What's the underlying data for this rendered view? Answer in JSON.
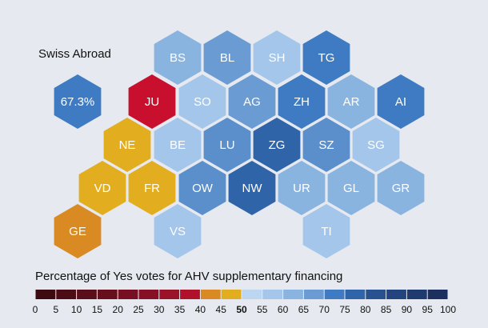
{
  "title": "Swiss Abroad",
  "abroad": {
    "label": "67.3%",
    "color": "#3f7bc2"
  },
  "cantons": [
    {
      "label": "BS",
      "color": "#8ab4e0"
    },
    {
      "label": "BL",
      "color": "#6a9bd3"
    },
    {
      "label": "SH",
      "color": "#a4c6ea"
    },
    {
      "label": "TG",
      "color": "#3f7bc2"
    },
    {
      "label": "JU",
      "color": "#c8102e"
    },
    {
      "label": "SO",
      "color": "#a4c6ea"
    },
    {
      "label": "AG",
      "color": "#6a9bd3"
    },
    {
      "label": "ZH",
      "color": "#3f7bc2"
    },
    {
      "label": "AR",
      "color": "#8ab4e0"
    },
    {
      "label": "AI",
      "color": "#3f7bc2"
    },
    {
      "label": "NE",
      "color": "#e2ae20"
    },
    {
      "label": "BE",
      "color": "#a4c6ea"
    },
    {
      "label": "LU",
      "color": "#5a8fcc"
    },
    {
      "label": "ZG",
      "color": "#2f64a8"
    },
    {
      "label": "SZ",
      "color": "#5a8fcc"
    },
    {
      "label": "SG",
      "color": "#a4c6ea"
    },
    {
      "label": "VD",
      "color": "#e2ae20"
    },
    {
      "label": "FR",
      "color": "#e2ae20"
    },
    {
      "label": "OW",
      "color": "#5a8fcc"
    },
    {
      "label": "NW",
      "color": "#2f64a8"
    },
    {
      "label": "UR",
      "color": "#8ab4e0"
    },
    {
      "label": "GL",
      "color": "#8ab4e0"
    },
    {
      "label": "GR",
      "color": "#8ab4e0"
    },
    {
      "label": "GE",
      "color": "#d98a22"
    },
    {
      "label": "VS",
      "color": "#a4c6ea"
    },
    {
      "label": "TI",
      "color": "#a4c6ea"
    }
  ],
  "legend": {
    "title": "Percentage of Yes votes for AHV supplementary financing",
    "ticks": [
      0,
      5,
      10,
      15,
      20,
      25,
      30,
      35,
      40,
      45,
      50,
      55,
      60,
      65,
      70,
      75,
      80,
      85,
      90,
      95,
      100
    ],
    "bold_tick": 50,
    "colors": [
      "#3e0a12",
      "#4c0c16",
      "#5a0e1a",
      "#680f1e",
      "#761022",
      "#861126",
      "#98122a",
      "#b0122c",
      "#d98a22",
      "#e2ae20",
      "#bcd5f0",
      "#a4c6ea",
      "#8ab4e0",
      "#6a9bd3",
      "#3f7bc2",
      "#2f64a8",
      "#27528f",
      "#22457f",
      "#1f3a6e",
      "#1b305f"
    ]
  }
}
